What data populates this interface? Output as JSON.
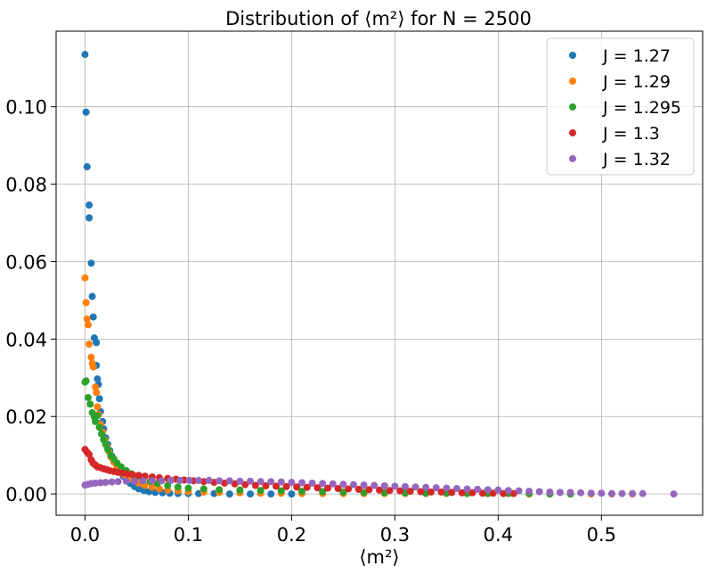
{
  "chart_data": {
    "type": "scatter",
    "title": "Distribution of ⟨m²⟩  for N = 2500",
    "xlabel": "⟨m²⟩",
    "ylabel": "",
    "xlim": [
      -0.028,
      0.598
    ],
    "ylim": [
      -0.0055,
      0.1195
    ],
    "xticks": [
      0.0,
      0.1,
      0.2,
      0.3,
      0.4,
      0.5
    ],
    "xtick_labels": [
      "0.0",
      "0.1",
      "0.2",
      "0.3",
      "0.4",
      "0.5"
    ],
    "yticks": [
      0.0,
      0.02,
      0.04,
      0.06,
      0.08,
      0.1
    ],
    "ytick_labels": [
      "0.00",
      "0.02",
      "0.04",
      "0.06",
      "0.08",
      "0.10"
    ],
    "grid": true,
    "legend_position": "top-right",
    "series": [
      {
        "name": "J = 1.27",
        "color": "#1f77b4",
        "points": [
          [
            0.0,
            0.1135
          ],
          [
            0.001,
            0.0986
          ],
          [
            0.002,
            0.0845
          ],
          [
            0.004,
            0.0746
          ],
          [
            0.004,
            0.0713
          ],
          [
            0.006,
            0.0596
          ],
          [
            0.007,
            0.051
          ],
          [
            0.008,
            0.0457
          ],
          [
            0.009,
            0.0403
          ],
          [
            0.011,
            0.0391
          ],
          [
            0.011,
            0.0332
          ],
          [
            0.012,
            0.0297
          ],
          [
            0.013,
            0.0283
          ],
          [
            0.014,
            0.0246
          ],
          [
            0.015,
            0.0213
          ],
          [
            0.017,
            0.0187
          ],
          [
            0.018,
            0.0168
          ],
          [
            0.02,
            0.0145
          ],
          [
            0.022,
            0.0128
          ],
          [
            0.024,
            0.0112
          ],
          [
            0.026,
            0.0098
          ],
          [
            0.028,
            0.0085
          ],
          [
            0.031,
            0.0072
          ],
          [
            0.034,
            0.0058
          ],
          [
            0.037,
            0.0046
          ],
          [
            0.04,
            0.0036
          ],
          [
            0.044,
            0.0027
          ],
          [
            0.048,
            0.0019
          ],
          [
            0.052,
            0.0013
          ],
          [
            0.057,
            0.0009
          ],
          [
            0.062,
            0.0006
          ],
          [
            0.068,
            0.0004
          ],
          [
            0.075,
            0.0003
          ],
          [
            0.082,
            0.0002
          ],
          [
            0.09,
            0.0001
          ],
          [
            0.1,
            0.0001
          ],
          [
            0.11,
            0.0001
          ],
          [
            0.125,
            0.0001
          ],
          [
            0.14,
            0.0
          ],
          [
            0.16,
            0.0
          ],
          [
            0.18,
            0.0
          ],
          [
            0.2,
            0.0
          ]
        ]
      },
      {
        "name": "J = 1.29",
        "color": "#ff7f0e",
        "points": [
          [
            0.0,
            0.0558
          ],
          [
            0.001,
            0.0494
          ],
          [
            0.002,
            0.0452
          ],
          [
            0.003,
            0.0437
          ],
          [
            0.004,
            0.0387
          ],
          [
            0.006,
            0.0353
          ],
          [
            0.007,
            0.0337
          ],
          [
            0.008,
            0.0328
          ],
          [
            0.01,
            0.0276
          ],
          [
            0.011,
            0.0262
          ],
          [
            0.012,
            0.0225
          ],
          [
            0.013,
            0.0205
          ],
          [
            0.015,
            0.018
          ],
          [
            0.017,
            0.016
          ],
          [
            0.019,
            0.014
          ],
          [
            0.021,
            0.0125
          ],
          [
            0.023,
            0.011
          ],
          [
            0.025,
            0.0095
          ],
          [
            0.028,
            0.0082
          ],
          [
            0.031,
            0.007
          ],
          [
            0.034,
            0.006
          ],
          [
            0.038,
            0.005
          ],
          [
            0.042,
            0.0042
          ],
          [
            0.047,
            0.0035
          ],
          [
            0.052,
            0.0028
          ],
          [
            0.058,
            0.0022
          ],
          [
            0.065,
            0.0017
          ],
          [
            0.072,
            0.0013
          ],
          [
            0.08,
            0.001
          ],
          [
            0.09,
            0.0008
          ],
          [
            0.1,
            0.0006
          ],
          [
            0.115,
            0.0005
          ],
          [
            0.13,
            0.0004
          ],
          [
            0.15,
            0.0003
          ],
          [
            0.17,
            0.0002
          ],
          [
            0.19,
            0.0002
          ],
          [
            0.21,
            0.0001
          ],
          [
            0.23,
            0.0001
          ],
          [
            0.25,
            0.0001
          ],
          [
            0.27,
            0.0001
          ],
          [
            0.29,
            0.0001
          ],
          [
            0.31,
            0.0001
          ],
          [
            0.33,
            0.0001
          ],
          [
            0.35,
            0.0001
          ],
          [
            0.37,
            0.0001
          ],
          [
            0.39,
            0.0001
          ],
          [
            0.41,
            0.0001
          ],
          [
            0.43,
            0.0
          ],
          [
            0.45,
            0.0
          ],
          [
            0.47,
            0.0
          ],
          [
            0.49,
            0.0
          ],
          [
            0.51,
            0.0
          ],
          [
            0.53,
            0.0
          ]
        ]
      },
      {
        "name": "J = 1.295",
        "color": "#2ca02c",
        "points": [
          [
            0.0,
            0.0289
          ],
          [
            0.001,
            0.0292
          ],
          [
            0.003,
            0.0249
          ],
          [
            0.005,
            0.0232
          ],
          [
            0.007,
            0.021
          ],
          [
            0.009,
            0.0199
          ],
          [
            0.01,
            0.0187
          ],
          [
            0.012,
            0.0202
          ],
          [
            0.014,
            0.0172
          ],
          [
            0.016,
            0.0155
          ],
          [
            0.018,
            0.014
          ],
          [
            0.02,
            0.0128
          ],
          [
            0.022,
            0.0115
          ],
          [
            0.025,
            0.01
          ],
          [
            0.028,
            0.009
          ],
          [
            0.031,
            0.008
          ],
          [
            0.035,
            0.007
          ],
          [
            0.04,
            0.006
          ],
          [
            0.045,
            0.0052
          ],
          [
            0.05,
            0.0045
          ],
          [
            0.056,
            0.0038
          ],
          [
            0.063,
            0.0032
          ],
          [
            0.07,
            0.0027
          ],
          [
            0.08,
            0.0022
          ],
          [
            0.09,
            0.0018
          ],
          [
            0.1,
            0.0015
          ],
          [
            0.115,
            0.0013
          ],
          [
            0.13,
            0.0011
          ],
          [
            0.15,
            0.001
          ],
          [
            0.17,
            0.0009
          ],
          [
            0.19,
            0.0008
          ],
          [
            0.21,
            0.0007
          ],
          [
            0.23,
            0.0006
          ],
          [
            0.25,
            0.0005
          ],
          [
            0.27,
            0.0004
          ],
          [
            0.29,
            0.0003
          ],
          [
            0.31,
            0.0003
          ],
          [
            0.33,
            0.0002
          ],
          [
            0.35,
            0.0002
          ],
          [
            0.37,
            0.0001
          ],
          [
            0.39,
            0.0001
          ],
          [
            0.41,
            0.0001
          ],
          [
            0.43,
            0.0001
          ],
          [
            0.45,
            0.0
          ],
          [
            0.47,
            0.0
          ]
        ]
      },
      {
        "name": "J = 1.3",
        "color": "#d62728",
        "points": [
          [
            0.0,
            0.0115
          ],
          [
            0.002,
            0.0108
          ],
          [
            0.004,
            0.0102
          ],
          [
            0.006,
            0.0088
          ],
          [
            0.008,
            0.0079
          ],
          [
            0.01,
            0.0075
          ],
          [
            0.012,
            0.007
          ],
          [
            0.015,
            0.0068
          ],
          [
            0.018,
            0.0065
          ],
          [
            0.021,
            0.0063
          ],
          [
            0.024,
            0.006
          ],
          [
            0.028,
            0.0058
          ],
          [
            0.032,
            0.0056
          ],
          [
            0.036,
            0.0054
          ],
          [
            0.041,
            0.0052
          ],
          [
            0.046,
            0.005
          ],
          [
            0.052,
            0.0048
          ],
          [
            0.058,
            0.0046
          ],
          [
            0.065,
            0.0044
          ],
          [
            0.072,
            0.0042
          ],
          [
            0.08,
            0.004
          ],
          [
            0.088,
            0.0038
          ],
          [
            0.096,
            0.0036
          ],
          [
            0.105,
            0.0034
          ],
          [
            0.115,
            0.0032
          ],
          [
            0.125,
            0.003
          ],
          [
            0.135,
            0.0028
          ],
          [
            0.145,
            0.0026
          ],
          [
            0.155,
            0.0024
          ],
          [
            0.165,
            0.0022
          ],
          [
            0.175,
            0.0021
          ],
          [
            0.185,
            0.002
          ],
          [
            0.195,
            0.0019
          ],
          [
            0.205,
            0.0018
          ],
          [
            0.215,
            0.0017
          ],
          [
            0.225,
            0.0016
          ],
          [
            0.235,
            0.0015
          ],
          [
            0.245,
            0.0014
          ],
          [
            0.255,
            0.0013
          ],
          [
            0.265,
            0.0012
          ],
          [
            0.275,
            0.0011
          ],
          [
            0.285,
            0.001
          ],
          [
            0.295,
            0.0009
          ],
          [
            0.305,
            0.0008
          ],
          [
            0.315,
            0.0007
          ],
          [
            0.325,
            0.0006
          ],
          [
            0.335,
            0.0005
          ],
          [
            0.345,
            0.0005
          ],
          [
            0.355,
            0.0004
          ],
          [
            0.365,
            0.0003
          ],
          [
            0.375,
            0.0003
          ],
          [
            0.385,
            0.0002
          ],
          [
            0.395,
            0.0002
          ],
          [
            0.405,
            0.0001
          ],
          [
            0.415,
            0.0001
          ]
        ]
      },
      {
        "name": "J = 1.32",
        "color": "#9467bd",
        "points": [
          [
            0.0,
            0.0023
          ],
          [
            0.003,
            0.0025
          ],
          [
            0.006,
            0.0027
          ],
          [
            0.01,
            0.0028
          ],
          [
            0.015,
            0.0029
          ],
          [
            0.02,
            0.003
          ],
          [
            0.026,
            0.0031
          ],
          [
            0.032,
            0.0032
          ],
          [
            0.04,
            0.0033
          ],
          [
            0.048,
            0.0033
          ],
          [
            0.056,
            0.0034
          ],
          [
            0.065,
            0.0034
          ],
          [
            0.074,
            0.0034
          ],
          [
            0.083,
            0.0035
          ],
          [
            0.092,
            0.0035
          ],
          [
            0.101,
            0.0035
          ],
          [
            0.11,
            0.0035
          ],
          [
            0.12,
            0.0035
          ],
          [
            0.13,
            0.0034
          ],
          [
            0.14,
            0.0034
          ],
          [
            0.15,
            0.0033
          ],
          [
            0.16,
            0.0033
          ],
          [
            0.17,
            0.0032
          ],
          [
            0.18,
            0.0032
          ],
          [
            0.19,
            0.0031
          ],
          [
            0.2,
            0.003
          ],
          [
            0.21,
            0.0029
          ],
          [
            0.22,
            0.0028
          ],
          [
            0.23,
            0.0027
          ],
          [
            0.24,
            0.0026
          ],
          [
            0.25,
            0.0025
          ],
          [
            0.26,
            0.0024
          ],
          [
            0.27,
            0.0023
          ],
          [
            0.28,
            0.0022
          ],
          [
            0.29,
            0.0021
          ],
          [
            0.3,
            0.002
          ],
          [
            0.31,
            0.0019
          ],
          [
            0.32,
            0.0018
          ],
          [
            0.33,
            0.0017
          ],
          [
            0.34,
            0.0016
          ],
          [
            0.35,
            0.0015
          ],
          [
            0.36,
            0.0014
          ],
          [
            0.37,
            0.0013
          ],
          [
            0.38,
            0.0012
          ],
          [
            0.39,
            0.0011
          ],
          [
            0.4,
            0.001
          ],
          [
            0.41,
            0.0009
          ],
          [
            0.42,
            0.0008
          ],
          [
            0.43,
            0.0007
          ],
          [
            0.44,
            0.0006
          ],
          [
            0.45,
            0.0005
          ],
          [
            0.46,
            0.0004
          ],
          [
            0.47,
            0.0004
          ],
          [
            0.48,
            0.0003
          ],
          [
            0.49,
            0.0002
          ],
          [
            0.5,
            0.0002
          ],
          [
            0.51,
            0.0001
          ],
          [
            0.52,
            0.0001
          ],
          [
            0.53,
            0.0001
          ],
          [
            0.54,
            0.0001
          ],
          [
            0.57,
            0.0
          ]
        ]
      }
    ]
  }
}
